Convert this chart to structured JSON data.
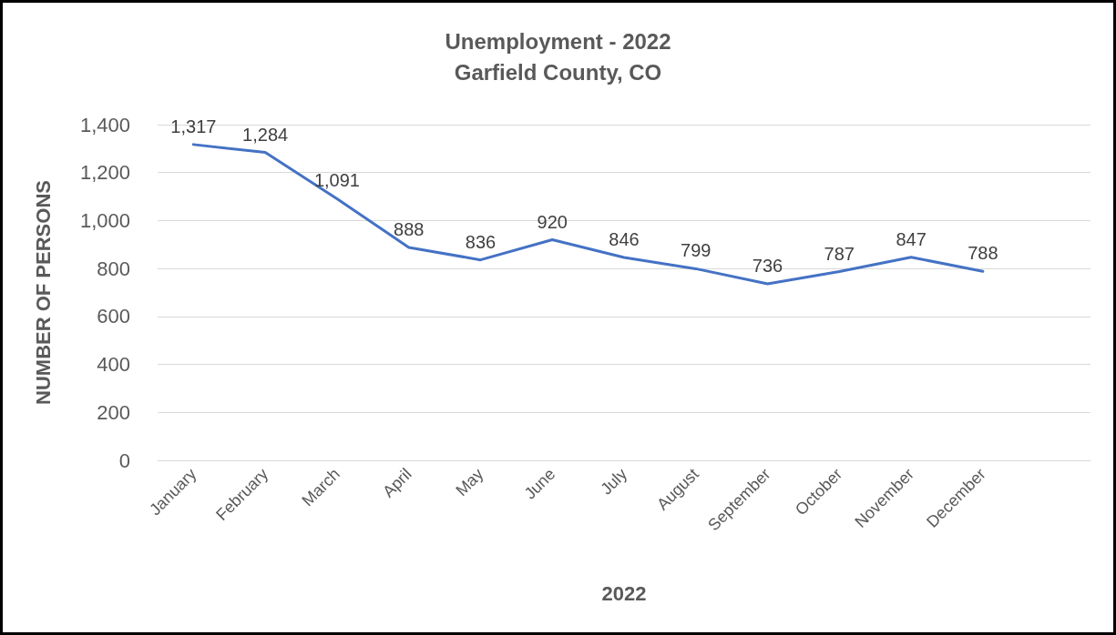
{
  "chart_data": {
    "type": "line",
    "title": "Unemployment - 2022\nGarfield County, CO",
    "xlabel": "2022",
    "ylabel": "NUMBER OF PERSONS",
    "categories": [
      "January",
      "February",
      "March",
      "April",
      "May",
      "June",
      "July",
      "August",
      "September",
      "October",
      "November",
      "December",
      null
    ],
    "series": [
      {
        "color": "#4472c4",
        "values": [
          1317,
          1284,
          1091,
          888,
          836,
          920,
          846,
          799,
          736,
          787,
          847,
          788,
          null
        ],
        "value_labels": [
          "1,317",
          "1,284",
          "1,091",
          "888",
          "836",
          "920",
          "846",
          "799",
          "736",
          "787",
          "847",
          "788",
          null
        ]
      }
    ],
    "ylim": [
      0,
      1400
    ],
    "yticks": [
      0,
      200,
      400,
      600,
      800,
      {
        "value": 1000,
        "label": "1,000"
      },
      {
        "value": 1200,
        "label": "1,200"
      },
      {
        "value": 1400,
        "label": "1,400"
      }
    ],
    "grid": "y",
    "marker": "none",
    "line_style": "solid"
  }
}
